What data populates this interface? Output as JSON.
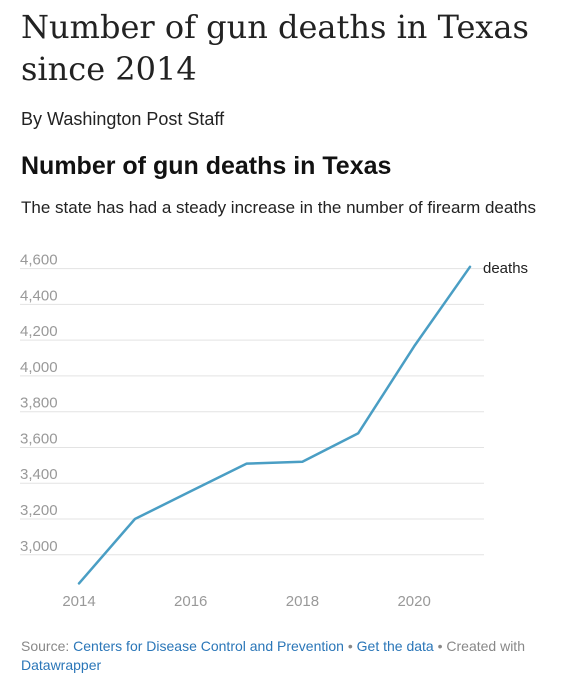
{
  "article": {
    "headline": "Number of gun deaths in Texas since 2014",
    "byline": "By Washington Post Staff"
  },
  "footer": {
    "source_prefix": "Source: ",
    "source_link": "Centers for Disease Control and Prevention",
    "separator": " • ",
    "data_link": "Get the data",
    "created_with": "Created with",
    "tool_link": "Datawrapper"
  },
  "colors": {
    "line": "#4a9ec4",
    "link": "#2a76b8",
    "grid": "#e3e3e3",
    "tick": "#999999"
  },
  "chart_data": {
    "type": "line",
    "title": "Number of gun deaths in Texas",
    "subtitle": "The state has had a steady increase in the number of firearm deaths",
    "xlabel": "",
    "ylabel": "",
    "x": [
      2014,
      2015,
      2016,
      2017,
      2018,
      2019,
      2020,
      2021
    ],
    "series": [
      {
        "name": "deaths",
        "values": [
          2840,
          3200,
          3355,
          3510,
          3520,
          3680,
          4165,
          4610
        ]
      }
    ],
    "x_ticks": [
      2014,
      2016,
      2018,
      2020
    ],
    "y_ticks": [
      3000,
      3200,
      3400,
      3600,
      3800,
      4000,
      4200,
      4400,
      4600
    ],
    "ylim": [
      2820,
      4620
    ],
    "grid": true,
    "legend": "direct label at line end"
  }
}
